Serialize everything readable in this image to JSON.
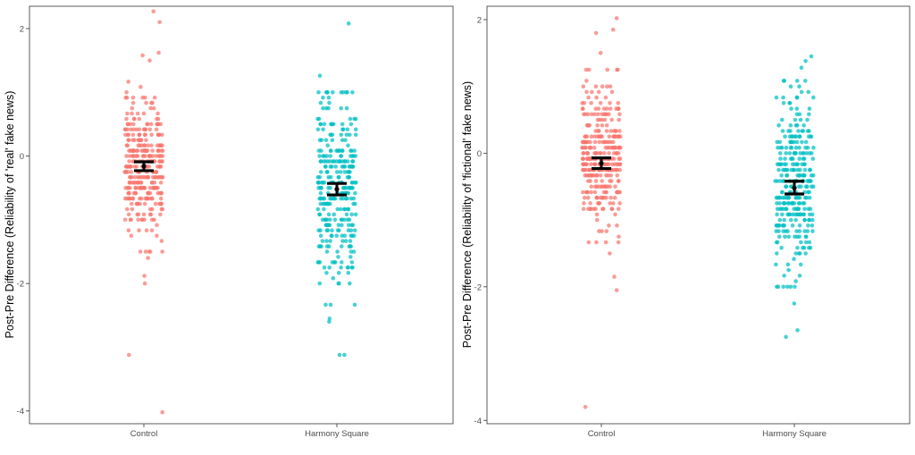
{
  "chart_data": [
    {
      "type": "scatter",
      "subtype": "jitter-with-error-bars",
      "ylabel": "Post-Pre Difference (Reliability of 'real' fake news)",
      "xlabel": "",
      "categories": [
        "Control",
        "Harmony Square"
      ],
      "yticks": [
        -4,
        -2,
        0,
        2
      ],
      "ylim": [
        -4.2,
        2.35
      ],
      "colors": {
        "Control": "#F8766D",
        "Harmony Square": "#00BFC4",
        "error_bar": "#000000"
      },
      "summary": [
        {
          "group": "Control",
          "mean": -0.16,
          "lower": -0.23,
          "upper": -0.09
        },
        {
          "group": "Harmony Square",
          "mean": -0.52,
          "lower": -0.61,
          "upper": -0.43
        }
      ],
      "outliers": {
        "Control": [
          2.27,
          2.1,
          1.62,
          1.58,
          1.5,
          -1.6,
          -1.88,
          -2.0,
          -3.12,
          -4.02
        ],
        "Harmony Square": [
          2.08,
          1.26,
          -2.55,
          -2.6,
          -3.12,
          -3.12
        ]
      },
      "distribution": {
        "Control": {
          "center": -0.2,
          "spread": 0.55,
          "min": -1.5,
          "max": 1.3,
          "n": 320
        },
        "Harmony Square": {
          "center": -0.5,
          "spread": 0.8,
          "min": -2.3,
          "max": 1.0,
          "n": 300
        }
      }
    },
    {
      "type": "scatter",
      "subtype": "jitter-with-error-bars",
      "ylabel": "Post-Pre Difference (Reliability of 'fictional' fake news)",
      "xlabel": "",
      "categories": [
        "Control",
        "Harmony Square"
      ],
      "yticks": [
        -4,
        -2,
        0,
        2
      ],
      "ylim": [
        -4.05,
        2.2
      ],
      "colors": {
        "Control": "#F8766D",
        "Harmony Square": "#00BFC4",
        "error_bar": "#000000"
      },
      "summary": [
        {
          "group": "Control",
          "mean": -0.15,
          "lower": -0.23,
          "upper": -0.07
        },
        {
          "group": "Harmony Square",
          "mean": -0.52,
          "lower": -0.61,
          "upper": -0.42
        }
      ],
      "outliers": {
        "Control": [
          2.02,
          1.85,
          1.8,
          1.5,
          -1.5,
          -1.85,
          -2.05,
          -3.8
        ],
        "Harmony Square": [
          1.45,
          1.38,
          1.28,
          -2.25,
          -2.65,
          -2.75
        ]
      },
      "distribution": {
        "Control": {
          "center": -0.1,
          "spread": 0.5,
          "min": -1.35,
          "max": 1.25,
          "n": 320
        },
        "Harmony Square": {
          "center": -0.5,
          "spread": 0.7,
          "min": -2.0,
          "max": 1.1,
          "n": 300
        }
      }
    }
  ]
}
